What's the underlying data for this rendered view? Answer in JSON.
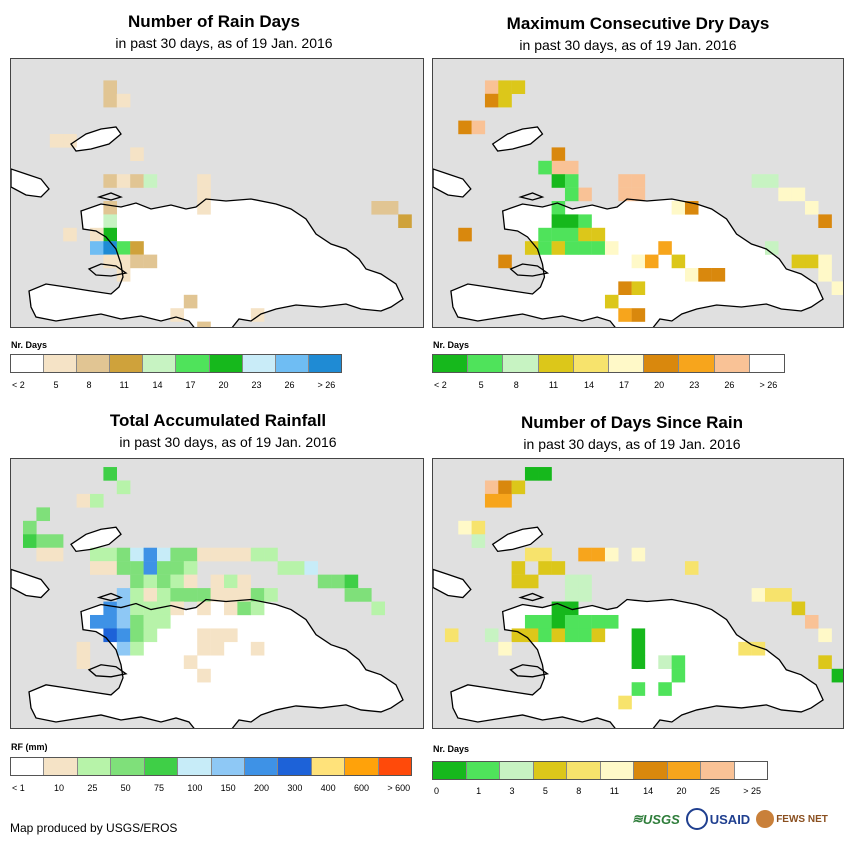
{
  "panels": [
    {
      "id": "rain-days",
      "title": "Number of Rain Days",
      "subtitle": "in past 30 days, as of 19 Jan. 2016",
      "legend_label": "Nr. Days",
      "legend_ticks": [
        "< 2",
        "5",
        "8",
        "11",
        "14",
        "17",
        "20",
        "23",
        "26",
        "> 26"
      ],
      "legend_colors": [
        "#ffffff",
        "#f5e3c6",
        "#e1c593",
        "#cfa23b",
        "#c7f3c2",
        "#4fe35b",
        "#16b81c",
        "#c9ecf8",
        "#6fbdf3",
        "#1f8bd4"
      ],
      "cells": [
        [
          6,
          1,
          2
        ],
        [
          6,
          2,
          2
        ],
        [
          7,
          2,
          1
        ],
        [
          2,
          5,
          1
        ],
        [
          3,
          5,
          1
        ],
        [
          8,
          6,
          1
        ],
        [
          6,
          8,
          2
        ],
        [
          7,
          8,
          1
        ],
        [
          8,
          8,
          2
        ],
        [
          9,
          8,
          4
        ],
        [
          13,
          8,
          1
        ],
        [
          13,
          9,
          1
        ],
        [
          13,
          10,
          1
        ],
        [
          6,
          10,
          2
        ],
        [
          6,
          11,
          4
        ],
        [
          6,
          12,
          6
        ],
        [
          5,
          12,
          1
        ],
        [
          3,
          12,
          1
        ],
        [
          5,
          13,
          8
        ],
        [
          6,
          13,
          9
        ],
        [
          7,
          13,
          5
        ],
        [
          8,
          13,
          3
        ],
        [
          6,
          14,
          1
        ],
        [
          7,
          14,
          1
        ],
        [
          7,
          15,
          1
        ],
        [
          8,
          14,
          2
        ],
        [
          9,
          14,
          2
        ],
        [
          26,
          10,
          2
        ],
        [
          27,
          10,
          2
        ],
        [
          28,
          11,
          3
        ],
        [
          12,
          17,
          2
        ],
        [
          11,
          18,
          1
        ],
        [
          17,
          18,
          1
        ],
        [
          13,
          19,
          2
        ]
      ]
    },
    {
      "id": "dry-days",
      "title": "Maximum Consecutive Dry Days",
      "subtitle": "in past 30 days, as of 19 Jan. 2016",
      "legend_label": "Nr. Days",
      "legend_ticks": [
        "< 2",
        "5",
        "8",
        "11",
        "14",
        "17",
        "20",
        "23",
        "26",
        "> 26"
      ],
      "legend_colors": [
        "#16b81c",
        "#4fe35b",
        "#c7f3c2",
        "#dcc71a",
        "#f7e36c",
        "#fff9c8",
        "#d9880d",
        "#f7a51c",
        "#f9c296",
        "#ffffff"
      ],
      "cells": [
        [
          3,
          1,
          8
        ],
        [
          4,
          1,
          3
        ],
        [
          5,
          1,
          3
        ],
        [
          3,
          2,
          6
        ],
        [
          4,
          2,
          3
        ],
        [
          1,
          4,
          6
        ],
        [
          2,
          4,
          8
        ],
        [
          8,
          6,
          6
        ],
        [
          8,
          7,
          8
        ],
        [
          9,
          7,
          8
        ],
        [
          7,
          7,
          1
        ],
        [
          8,
          8,
          0
        ],
        [
          9,
          8,
          1
        ],
        [
          10,
          9,
          8
        ],
        [
          9,
          9,
          1
        ],
        [
          8,
          10,
          1
        ],
        [
          8,
          11,
          0
        ],
        [
          9,
          11,
          0
        ],
        [
          10,
          11,
          1
        ],
        [
          7,
          12,
          1
        ],
        [
          8,
          12,
          1
        ],
        [
          9,
          12,
          1
        ],
        [
          10,
          12,
          3
        ],
        [
          11,
          12,
          3
        ],
        [
          6,
          13,
          3
        ],
        [
          7,
          13,
          1
        ],
        [
          8,
          13,
          3
        ],
        [
          9,
          13,
          1
        ],
        [
          10,
          13,
          1
        ],
        [
          11,
          13,
          1
        ],
        [
          12,
          13,
          5
        ],
        [
          4,
          14,
          6
        ],
        [
          1,
          12,
          6
        ],
        [
          14,
          14,
          5
        ],
        [
          15,
          14,
          7
        ],
        [
          16,
          13,
          7
        ],
        [
          17,
          14,
          3
        ],
        [
          18,
          15,
          5
        ],
        [
          13,
          8,
          8
        ],
        [
          14,
          8,
          8
        ],
        [
          13,
          9,
          8
        ],
        [
          14,
          9,
          8
        ],
        [
          23,
          8,
          2
        ],
        [
          24,
          8,
          2
        ],
        [
          25,
          9,
          5
        ],
        [
          26,
          9,
          5
        ],
        [
          27,
          10,
          5
        ],
        [
          28,
          11,
          6
        ],
        [
          27,
          14,
          3
        ],
        [
          28,
          14,
          5
        ],
        [
          26,
          14,
          3
        ],
        [
          19,
          15,
          6
        ],
        [
          20,
          15,
          6
        ],
        [
          13,
          16,
          6
        ],
        [
          14,
          16,
          3
        ],
        [
          12,
          17,
          3
        ],
        [
          13,
          18,
          7
        ],
        [
          14,
          18,
          6
        ],
        [
          17,
          10,
          5
        ],
        [
          18,
          10,
          6
        ],
        [
          29,
          16,
          5
        ],
        [
          28,
          15,
          5
        ],
        [
          24,
          13,
          2
        ]
      ]
    },
    {
      "id": "rainfall",
      "title": "Total Accumulated Rainfall",
      "subtitle": "in past 30 days, as of 19 Jan. 2016",
      "legend_label": "RF (mm)",
      "legend_ticks": [
        "< 1",
        "10",
        "25",
        "50",
        "75",
        "100",
        "150",
        "200",
        "300",
        "400",
        "600",
        "> 600"
      ],
      "legend_colors": [
        "#ffffff",
        "#f5e3c6",
        "#b7f3a9",
        "#7fe07a",
        "#3fcf47",
        "#c7ecf8",
        "#8ec8f5",
        "#3e92e6",
        "#1d62d8",
        "#ffe27a",
        "#ffa20a",
        "#ff4a0a"
      ],
      "cells": [
        [
          6,
          0,
          4
        ],
        [
          7,
          1,
          2
        ],
        [
          4,
          2,
          1
        ],
        [
          5,
          2,
          2
        ],
        [
          1,
          3,
          3
        ],
        [
          0,
          4,
          3
        ],
        [
          0,
          5,
          4
        ],
        [
          1,
          5,
          3
        ],
        [
          2,
          5,
          3
        ],
        [
          1,
          6,
          1
        ],
        [
          2,
          6,
          1
        ],
        [
          5,
          6,
          2
        ],
        [
          6,
          6,
          2
        ],
        [
          7,
          6,
          3
        ],
        [
          8,
          6,
          5
        ],
        [
          9,
          6,
          7
        ],
        [
          10,
          6,
          5
        ],
        [
          11,
          6,
          3
        ],
        [
          12,
          6,
          3
        ],
        [
          5,
          7,
          1
        ],
        [
          6,
          7,
          1
        ],
        [
          7,
          7,
          3
        ],
        [
          8,
          7,
          3
        ],
        [
          9,
          7,
          7
        ],
        [
          10,
          7,
          3
        ],
        [
          11,
          7,
          3
        ],
        [
          12,
          7,
          2
        ],
        [
          13,
          6,
          1
        ],
        [
          14,
          6,
          1
        ],
        [
          15,
          6,
          1
        ],
        [
          16,
          6,
          1
        ],
        [
          17,
          6,
          2
        ],
        [
          18,
          6,
          2
        ],
        [
          19,
          7,
          2
        ],
        [
          20,
          7,
          2
        ],
        [
          21,
          7,
          5
        ],
        [
          8,
          8,
          3
        ],
        [
          9,
          8,
          2
        ],
        [
          10,
          8,
          3
        ],
        [
          11,
          8,
          2
        ],
        [
          12,
          8,
          1
        ],
        [
          14,
          8,
          1
        ],
        [
          15,
          8,
          2
        ],
        [
          16,
          8,
          1
        ],
        [
          22,
          8,
          3
        ],
        [
          23,
          8,
          3
        ],
        [
          24,
          8,
          4
        ],
        [
          7,
          9,
          6
        ],
        [
          8,
          9,
          2
        ],
        [
          9,
          9,
          1
        ],
        [
          10,
          9,
          2
        ],
        [
          11,
          9,
          3
        ],
        [
          12,
          9,
          3
        ],
        [
          13,
          9,
          3
        ],
        [
          14,
          9,
          1
        ],
        [
          15,
          9,
          1
        ],
        [
          16,
          9,
          1
        ],
        [
          17,
          9,
          3
        ],
        [
          18,
          9,
          2
        ],
        [
          24,
          9,
          3
        ],
        [
          25,
          9,
          3
        ],
        [
          26,
          10,
          2
        ],
        [
          6,
          10,
          7
        ],
        [
          7,
          10,
          6
        ],
        [
          8,
          10,
          2
        ],
        [
          9,
          10,
          2
        ],
        [
          10,
          10,
          2
        ],
        [
          11,
          10,
          1
        ],
        [
          13,
          10,
          1
        ],
        [
          15,
          10,
          1
        ],
        [
          16,
          10,
          3
        ],
        [
          17,
          10,
          2
        ],
        [
          5,
          11,
          7
        ],
        [
          6,
          11,
          7
        ],
        [
          7,
          11,
          6
        ],
        [
          8,
          11,
          3
        ],
        [
          9,
          11,
          2
        ],
        [
          10,
          11,
          2
        ],
        [
          6,
          12,
          8
        ],
        [
          7,
          12,
          7
        ],
        [
          8,
          12,
          3
        ],
        [
          9,
          12,
          2
        ],
        [
          7,
          13,
          6
        ],
        [
          8,
          13,
          2
        ],
        [
          13,
          12,
          1
        ],
        [
          14,
          12,
          1
        ],
        [
          15,
          12,
          1
        ],
        [
          13,
          13,
          1
        ],
        [
          14,
          13,
          1
        ],
        [
          17,
          13,
          1
        ],
        [
          12,
          14,
          1
        ],
        [
          13,
          15,
          1
        ],
        [
          4,
          14,
          1
        ],
        [
          4,
          13,
          1
        ]
      ]
    },
    {
      "id": "days-since-rain",
      "title": "Number of Days Since Rain",
      "subtitle": "in past 30 days, as of 19 Jan. 2016",
      "legend_label": "Nr. Days",
      "legend_ticks": [
        "0",
        "1",
        "3",
        "5",
        "8",
        "11",
        "14",
        "20",
        "25",
        "> 25"
      ],
      "legend_colors": [
        "#16b81c",
        "#4fe35b",
        "#c7f3c2",
        "#dcc71a",
        "#f7e36c",
        "#fff9c8",
        "#d9880d",
        "#f7a51c",
        "#f9c296",
        "#ffffff"
      ],
      "cells": [
        [
          6,
          0,
          0
        ],
        [
          7,
          0,
          0
        ],
        [
          3,
          1,
          8
        ],
        [
          4,
          1,
          6
        ],
        [
          5,
          1,
          3
        ],
        [
          3,
          2,
          7
        ],
        [
          4,
          2,
          7
        ],
        [
          1,
          4,
          5
        ],
        [
          2,
          4,
          4
        ],
        [
          2,
          5,
          2
        ],
        [
          7,
          6,
          4
        ],
        [
          6,
          6,
          4
        ],
        [
          7,
          7,
          3
        ],
        [
          8,
          7,
          3
        ],
        [
          5,
          7,
          3
        ],
        [
          5,
          8,
          3
        ],
        [
          6,
          8,
          3
        ],
        [
          10,
          6,
          7
        ],
        [
          11,
          6,
          7
        ],
        [
          12,
          6,
          5
        ],
        [
          9,
          8,
          2
        ],
        [
          10,
          8,
          2
        ],
        [
          9,
          9,
          2
        ],
        [
          10,
          9,
          2
        ],
        [
          14,
          6,
          5
        ],
        [
          18,
          7,
          4
        ],
        [
          8,
          10,
          0
        ],
        [
          9,
          10,
          0
        ],
        [
          6,
          11,
          1
        ],
        [
          7,
          11,
          1
        ],
        [
          8,
          11,
          0
        ],
        [
          9,
          11,
          1
        ],
        [
          10,
          11,
          1
        ],
        [
          11,
          11,
          1
        ],
        [
          12,
          11,
          1
        ],
        [
          5,
          12,
          3
        ],
        [
          6,
          12,
          3
        ],
        [
          7,
          12,
          1
        ],
        [
          8,
          12,
          3
        ],
        [
          9,
          12,
          1
        ],
        [
          10,
          12,
          1
        ],
        [
          11,
          12,
          3
        ],
        [
          4,
          13,
          5
        ],
        [
          3,
          12,
          2
        ],
        [
          14,
          12,
          0
        ],
        [
          14,
          13,
          0
        ],
        [
          14,
          14,
          0
        ],
        [
          16,
          14,
          2
        ],
        [
          17,
          14,
          1
        ],
        [
          17,
          15,
          1
        ],
        [
          16,
          16,
          1
        ],
        [
          14,
          16,
          1
        ],
        [
          23,
          9,
          5
        ],
        [
          24,
          9,
          4
        ],
        [
          25,
          9,
          4
        ],
        [
          26,
          10,
          3
        ],
        [
          27,
          11,
          8
        ],
        [
          28,
          12,
          5
        ],
        [
          28,
          14,
          3
        ],
        [
          29,
          15,
          0
        ],
        [
          22,
          13,
          4
        ],
        [
          23,
          13,
          4
        ],
        [
          0,
          12,
          4
        ],
        [
          13,
          17,
          4
        ]
      ]
    }
  ],
  "footer": {
    "credit": "Map produced by USGS/EROS"
  },
  "logos": {
    "usgs": "USGS",
    "usaid": "USAID",
    "fews": "FEWS NET"
  },
  "map_colors": {
    "ocean": "#e0e0e0",
    "land": "#ffffff",
    "coast": "#000000"
  }
}
